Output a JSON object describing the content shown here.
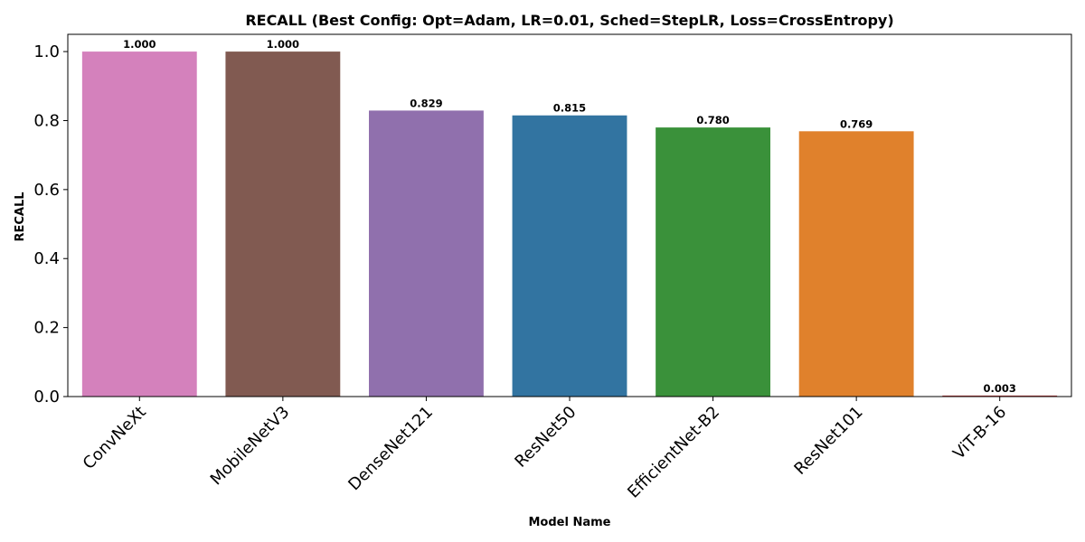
{
  "chart_data": {
    "type": "bar",
    "title": "RECALL (Best Config: Opt=Adam, LR=0.01, Sched=StepLR, Loss=CrossEntropy)",
    "xlabel": "Model Name",
    "ylabel": "RECALL",
    "categories": [
      "ConvNeXt",
      "MobileNetV3",
      "DenseNet121",
      "ResNet50",
      "EfficientNet-B2",
      "ResNet101",
      "ViT-B-16"
    ],
    "values": [
      1.0,
      1.0,
      0.829,
      0.815,
      0.78,
      0.769,
      0.003
    ],
    "data_labels": [
      "1.000",
      "1.000",
      "0.829",
      "0.815",
      "0.780",
      "0.769",
      "0.003"
    ],
    "colors": [
      "#d481bc",
      "#815a51",
      "#9070ad",
      "#3274a1",
      "#3a913a",
      "#e0812c",
      "#c13d3d"
    ],
    "ylim": [
      0,
      1.05
    ],
    "yticks": [
      0.0,
      0.2,
      0.4,
      0.6,
      0.8,
      1.0
    ],
    "ytick_labels": [
      "0.0",
      "0.2",
      "0.4",
      "0.6",
      "0.8",
      "1.0"
    ],
    "grid": false,
    "legend": "none"
  }
}
